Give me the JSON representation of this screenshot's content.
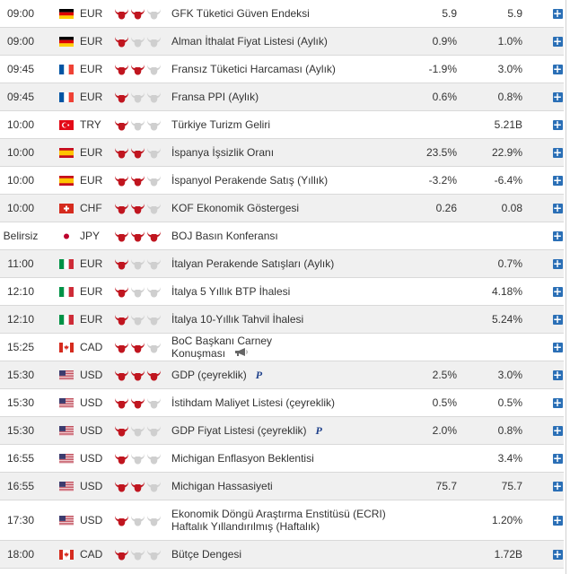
{
  "colors": {
    "bull_active": "#c0151f",
    "bull_inactive": "#cfcfcf",
    "plus": "#2a6fb6",
    "row_alt": "#f0f0f0"
  },
  "events": [
    {
      "time": "09:00",
      "flag": "de",
      "currency": "EUR",
      "importance": 2,
      "event": "GFK Tüketici Güven Endeksi",
      "actual": "5.9",
      "forecast": "5.9"
    },
    {
      "time": "09:00",
      "flag": "de",
      "currency": "EUR",
      "importance": 1,
      "event": "Alman İthalat Fiyat Listesi (Aylık)",
      "actual": "0.9%",
      "forecast": "1.0%"
    },
    {
      "time": "09:45",
      "flag": "fr",
      "currency": "EUR",
      "importance": 2,
      "event": "Fransız Tüketici Harcaması (Aylık)",
      "actual": "-1.9%",
      "forecast": "3.0%"
    },
    {
      "time": "09:45",
      "flag": "fr",
      "currency": "EUR",
      "importance": 1,
      "event": "Fransa PPI (Aylık)",
      "actual": "0.6%",
      "forecast": "0.8%"
    },
    {
      "time": "10:00",
      "flag": "tr",
      "currency": "TRY",
      "importance": 1,
      "event": "Türkiye Turizm Geliri",
      "actual": "",
      "forecast": "5.21B"
    },
    {
      "time": "10:00",
      "flag": "es",
      "currency": "EUR",
      "importance": 2,
      "event": "İspanya İşsizlik Oranı",
      "actual": "23.5%",
      "forecast": "22.9%"
    },
    {
      "time": "10:00",
      "flag": "es",
      "currency": "EUR",
      "importance": 2,
      "event": "İspanyol Perakende Satış (Yıllık)",
      "actual": "-3.2%",
      "forecast": "-6.4%"
    },
    {
      "time": "10:00",
      "flag": "ch",
      "currency": "CHF",
      "importance": 2,
      "event": "KOF Ekonomik Göstergesi",
      "actual": "0.26",
      "forecast": "0.08"
    },
    {
      "time": "Belirsiz",
      "flag": "jp",
      "currency": "JPY",
      "importance": 3,
      "event": "BOJ Basın Konferansı",
      "actual": "",
      "forecast": ""
    },
    {
      "time": "11:00",
      "flag": "it",
      "currency": "EUR",
      "importance": 1,
      "event": "İtalyan Perakende Satışları (Aylık)",
      "actual": "",
      "forecast": "0.7%"
    },
    {
      "time": "12:10",
      "flag": "it",
      "currency": "EUR",
      "importance": 1,
      "event": "İtalya 5 Yıllık BTP İhalesi",
      "actual": "",
      "forecast": "4.18%"
    },
    {
      "time": "12:10",
      "flag": "it",
      "currency": "EUR",
      "importance": 1,
      "event": "İtalya 10-Yıllık Tahvil İhalesi",
      "actual": "",
      "forecast": "5.24%"
    },
    {
      "time": "15:25",
      "flag": "ca",
      "currency": "CAD",
      "importance": 2,
      "event": "BoC Başkanı Carney Konuşması",
      "actual": "",
      "forecast": "",
      "extra": "speaker"
    },
    {
      "time": "15:30",
      "flag": "us",
      "currency": "USD",
      "importance": 3,
      "event": "GDP (çeyreklik)",
      "actual": "2.5%",
      "forecast": "3.0%",
      "extra": "P"
    },
    {
      "time": "15:30",
      "flag": "us",
      "currency": "USD",
      "importance": 2,
      "event": "İstihdam Maliyet Listesi (çeyreklik)",
      "actual": "0.5%",
      "forecast": "0.5%"
    },
    {
      "time": "15:30",
      "flag": "us",
      "currency": "USD",
      "importance": 1,
      "event": "GDP Fiyat Listesi (çeyreklik)",
      "actual": "2.0%",
      "forecast": "0.8%",
      "extra": "P"
    },
    {
      "time": "16:55",
      "flag": "us",
      "currency": "USD",
      "importance": 1,
      "event": "Michigan Enflasyon Beklentisi",
      "actual": "",
      "forecast": "3.4%"
    },
    {
      "time": "16:55",
      "flag": "us",
      "currency": "USD",
      "importance": 2,
      "event": "Michigan Hassasiyeti",
      "actual": "75.7",
      "forecast": "75.7"
    },
    {
      "time": "17:30",
      "flag": "us",
      "currency": "USD",
      "importance": 1,
      "event": "Ekonomik Döngü Araştırma Enstitüsü (ECRI) Haftalık Yıllandırılmış (Haftalık)",
      "actual": "",
      "forecast": "1.20%"
    },
    {
      "time": "18:00",
      "flag": "ca",
      "currency": "CAD",
      "importance": 1,
      "event": "Bütçe Dengesi",
      "actual": "",
      "forecast": "1.72B"
    }
  ]
}
